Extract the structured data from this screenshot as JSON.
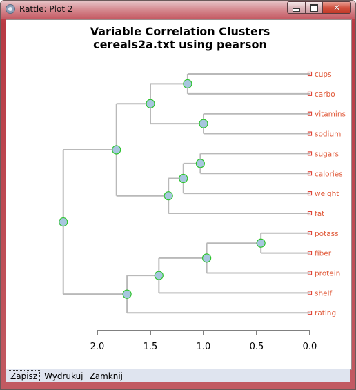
{
  "window": {
    "title": "Rattle: Plot 2",
    "controls": {
      "minimize": "minimize",
      "maximize": "maximize",
      "close": "✕"
    }
  },
  "menu": {
    "items": [
      "Zapisz",
      "Wydrukuj",
      "Zamknij"
    ]
  },
  "colors": {
    "branch": "#b9b9b9",
    "node_fill": "#a7c6df",
    "node_stroke": "#2ec42e",
    "leaf_marker": "#e0463a",
    "leaf_label": "#e05a3a"
  },
  "chart_data": {
    "type": "dendrogram",
    "title": "Variable Correlation Clusters",
    "subtitle": "cereals2a.txt using pearson",
    "axis": {
      "ticks": [
        2.0,
        1.5,
        1.0,
        0.5,
        0.0
      ],
      "tick_labels": [
        "2.0",
        "1.5",
        "1.0",
        "0.5",
        "0.0"
      ],
      "range": [
        2.3,
        0.0
      ],
      "reversed": true
    },
    "leaves": [
      "cups",
      "carbo",
      "vitamins",
      "sodium",
      "sugars",
      "calories",
      "weight",
      "fat",
      "potass",
      "fiber",
      "protein",
      "shelf",
      "rating"
    ],
    "merges": [
      {
        "id": "m1",
        "left": "cups",
        "right": "carbo",
        "height": 1.15
      },
      {
        "id": "m2",
        "left": "vitamins",
        "right": "sodium",
        "height": 1.0
      },
      {
        "id": "m3",
        "left": "m1",
        "right": "m2",
        "height": 1.5
      },
      {
        "id": "m4",
        "left": "sugars",
        "right": "calories",
        "height": 1.03
      },
      {
        "id": "m5",
        "left": "m4",
        "right": "weight",
        "height": 1.19
      },
      {
        "id": "m6",
        "left": "m5",
        "right": "fat",
        "height": 1.33
      },
      {
        "id": "m7",
        "left": "m3",
        "right": "m6",
        "height": 1.82
      },
      {
        "id": "m8",
        "left": "potass",
        "right": "fiber",
        "height": 0.46
      },
      {
        "id": "m9",
        "left": "m8",
        "right": "protein",
        "height": 0.97
      },
      {
        "id": "m10",
        "left": "m9",
        "right": "shelf",
        "height": 1.42
      },
      {
        "id": "m11",
        "left": "m10",
        "right": "rating",
        "height": 1.72
      },
      {
        "id": "m12",
        "left": "m7",
        "right": "m11",
        "height": 2.32
      }
    ]
  }
}
